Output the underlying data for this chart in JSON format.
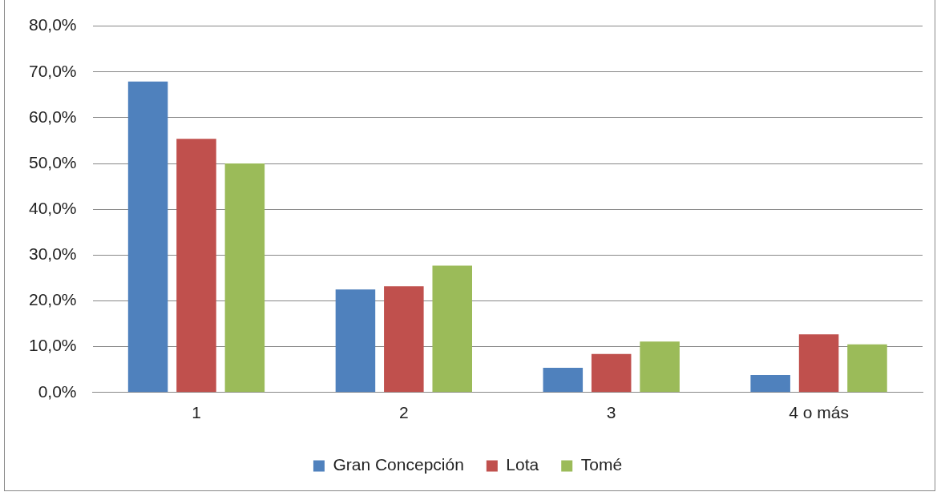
{
  "chart_data": {
    "type": "bar",
    "categories": [
      "1",
      "2",
      "3",
      "4 o más"
    ],
    "series": [
      {
        "name": "Gran Concepción",
        "color": "#4f81bd",
        "values": [
          67.9,
          22.5,
          5.4,
          3.8
        ]
      },
      {
        "name": "Lota",
        "color": "#c0504d",
        "values": [
          55.4,
          23.2,
          8.4,
          12.7
        ]
      },
      {
        "name": "Tomé",
        "color": "#9bbb59",
        "values": [
          50.0,
          27.7,
          11.1,
          10.5
        ]
      }
    ],
    "ylim": [
      0,
      80
    ],
    "yticks": [
      {
        "value": 0,
        "label": "0,0%"
      },
      {
        "value": 10,
        "label": "10,0%"
      },
      {
        "value": 20,
        "label": "20,0%"
      },
      {
        "value": 30,
        "label": "30,0%"
      },
      {
        "value": 40,
        "label": "40,0%"
      },
      {
        "value": 50,
        "label": "50,0%"
      },
      {
        "value": 60,
        "label": "60,0%"
      },
      {
        "value": 70,
        "label": "70,0%"
      },
      {
        "value": 80,
        "label": "80,0%"
      }
    ],
    "grid": "y",
    "legend": "bottom"
  }
}
